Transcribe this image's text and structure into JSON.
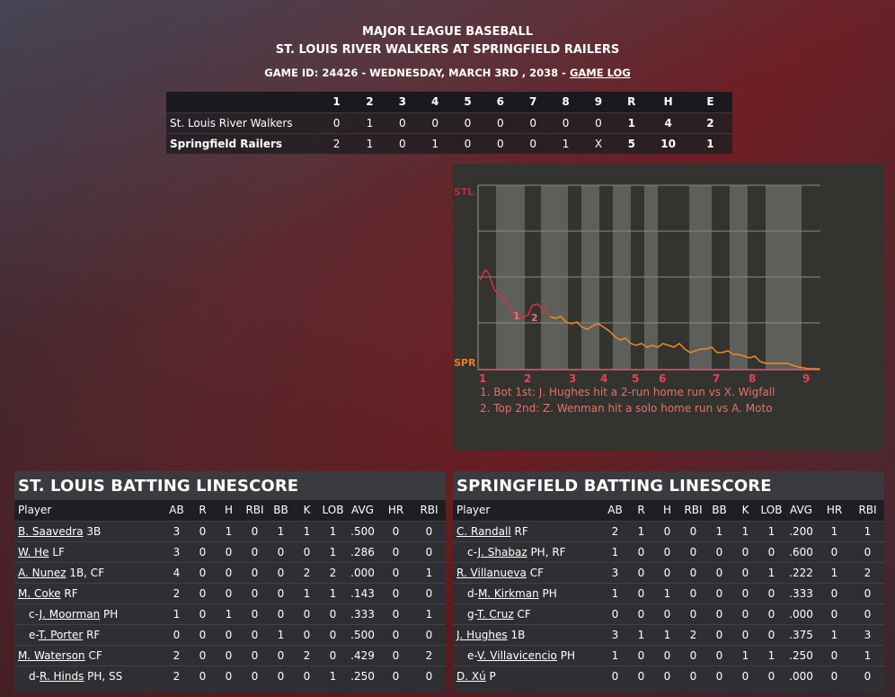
{
  "header": {
    "league": "MAJOR LEAGUE BASEBALL",
    "matchup": "ST. LOUIS RIVER WALKERS AT SPRINGFIELD RAILERS",
    "game_info": "GAME ID: 24426 - WEDNESDAY, MARCH 3RD , 2038 - ",
    "game_log_link": "GAME LOG"
  },
  "linescore": {
    "columns": [
      "1",
      "2",
      "3",
      "4",
      "5",
      "6",
      "7",
      "8",
      "9",
      "R",
      "H",
      "E"
    ],
    "rows": [
      {
        "team": "St. Louis River Walkers",
        "cells": [
          "0",
          "1",
          "0",
          "0",
          "0",
          "0",
          "0",
          "0",
          "0",
          "1",
          "4",
          "2"
        ]
      },
      {
        "team": "Springfield Railers",
        "cells": [
          "2",
          "1",
          "0",
          "1",
          "0",
          "0",
          "0",
          "1",
          "X",
          "5",
          "10",
          "1"
        ]
      }
    ]
  },
  "win_prob": {
    "top_label": "STL",
    "bottom_label": "SPR",
    "inning_labels": [
      "1",
      "2",
      "3",
      "4",
      "5",
      "6",
      "7",
      "8",
      "9"
    ],
    "markers": [
      "1",
      "2"
    ],
    "notes": [
      "1. Bot 1st: J. Hughes hit a 2-run home run vs X. Wigfall",
      "2. Top 2nd: Z. Wenman hit a solo home run vs A. Moto"
    ],
    "colors": {
      "stl": "#c8253a",
      "spr": "#ef7d1f",
      "line": "#e0303a",
      "line_low": "#f08a1e"
    }
  },
  "stl_batting": {
    "title": "ST. LOUIS BATTING LINESCORE",
    "columns": [
      "Player",
      "AB",
      "R",
      "H",
      "RBI",
      "BB",
      "K",
      "LOB",
      "AVG",
      "HR",
      "RBI"
    ],
    "rows": [
      {
        "prefix": "",
        "name": "B. Saavedra",
        "pos": " 3B",
        "stats": [
          "3",
          "0",
          "1",
          "0",
          "1",
          "1",
          "1",
          ".500",
          "0",
          "0"
        ]
      },
      {
        "prefix": "",
        "name": "W. He",
        "pos": " LF",
        "stats": [
          "3",
          "0",
          "0",
          "0",
          "0",
          "0",
          "1",
          ".286",
          "0",
          "0"
        ]
      },
      {
        "prefix": "",
        "name": "A. Nunez",
        "pos": " 1B, CF",
        "stats": [
          "4",
          "0",
          "0",
          "0",
          "0",
          "2",
          "2",
          ".000",
          "0",
          "1"
        ]
      },
      {
        "prefix": "",
        "name": "M. Coke",
        "pos": " RF",
        "stats": [
          "2",
          "0",
          "0",
          "0",
          "0",
          "1",
          "1",
          ".143",
          "0",
          "0"
        ]
      },
      {
        "prefix": "c-",
        "name": "J. Moorman",
        "pos": " PH",
        "stats": [
          "1",
          "0",
          "1",
          "0",
          "0",
          "0",
          "0",
          ".333",
          "0",
          "1"
        ]
      },
      {
        "prefix": "e-",
        "name": "T. Porter",
        "pos": " RF",
        "stats": [
          "0",
          "0",
          "0",
          "0",
          "1",
          "0",
          "0",
          ".500",
          "0",
          "0"
        ]
      },
      {
        "prefix": "",
        "name": "M. Waterson",
        "pos": " CF",
        "stats": [
          "2",
          "0",
          "0",
          "0",
          "0",
          "2",
          "0",
          ".429",
          "0",
          "2"
        ]
      },
      {
        "prefix": "d-",
        "name": "R. Hinds",
        "pos": " PH, SS",
        "stats": [
          "2",
          "0",
          "0",
          "0",
          "0",
          "0",
          "1",
          ".250",
          "0",
          "0"
        ]
      }
    ]
  },
  "spr_batting": {
    "title": "SPRINGFIELD BATTING LINESCORE",
    "columns": [
      "Player",
      "AB",
      "R",
      "H",
      "RBI",
      "BB",
      "K",
      "LOB",
      "AVG",
      "HR",
      "RBI"
    ],
    "rows": [
      {
        "prefix": "",
        "name": "C. Randall",
        "pos": " RF",
        "stats": [
          "2",
          "1",
          "0",
          "0",
          "1",
          "1",
          "1",
          ".200",
          "1",
          "1"
        ]
      },
      {
        "prefix": "c-",
        "name": "J. Shabaz",
        "pos": " PH, RF",
        "stats": [
          "1",
          "0",
          "0",
          "0",
          "0",
          "0",
          "0",
          ".600",
          "0",
          "0"
        ]
      },
      {
        "prefix": "",
        "name": "R. Villanueva",
        "pos": " CF",
        "stats": [
          "3",
          "0",
          "0",
          "0",
          "0",
          "0",
          "1",
          ".222",
          "1",
          "2"
        ]
      },
      {
        "prefix": "d-",
        "name": "M. Kirkman",
        "pos": " PH",
        "stats": [
          "1",
          "0",
          "1",
          "0",
          "0",
          "0",
          "0",
          ".333",
          "0",
          "0"
        ]
      },
      {
        "prefix": "g-",
        "name": "T. Cruz",
        "pos": " CF",
        "stats": [
          "0",
          "0",
          "0",
          "0",
          "0",
          "0",
          "0",
          ".000",
          "0",
          "0"
        ]
      },
      {
        "prefix": "",
        "name": "J. Hughes",
        "pos": " 1B",
        "stats": [
          "3",
          "1",
          "1",
          "2",
          "0",
          "0",
          "0",
          ".375",
          "1",
          "3"
        ]
      },
      {
        "prefix": "e-",
        "name": "V. Villavicencio",
        "pos": " PH",
        "stats": [
          "1",
          "0",
          "0",
          "0",
          "0",
          "1",
          "1",
          ".250",
          "0",
          "1"
        ]
      },
      {
        "prefix": "",
        "name": "D. Xú",
        "pos": " P",
        "stats": [
          "0",
          "0",
          "0",
          "0",
          "0",
          "0",
          "0",
          ".000",
          "0",
          "0"
        ]
      }
    ]
  }
}
